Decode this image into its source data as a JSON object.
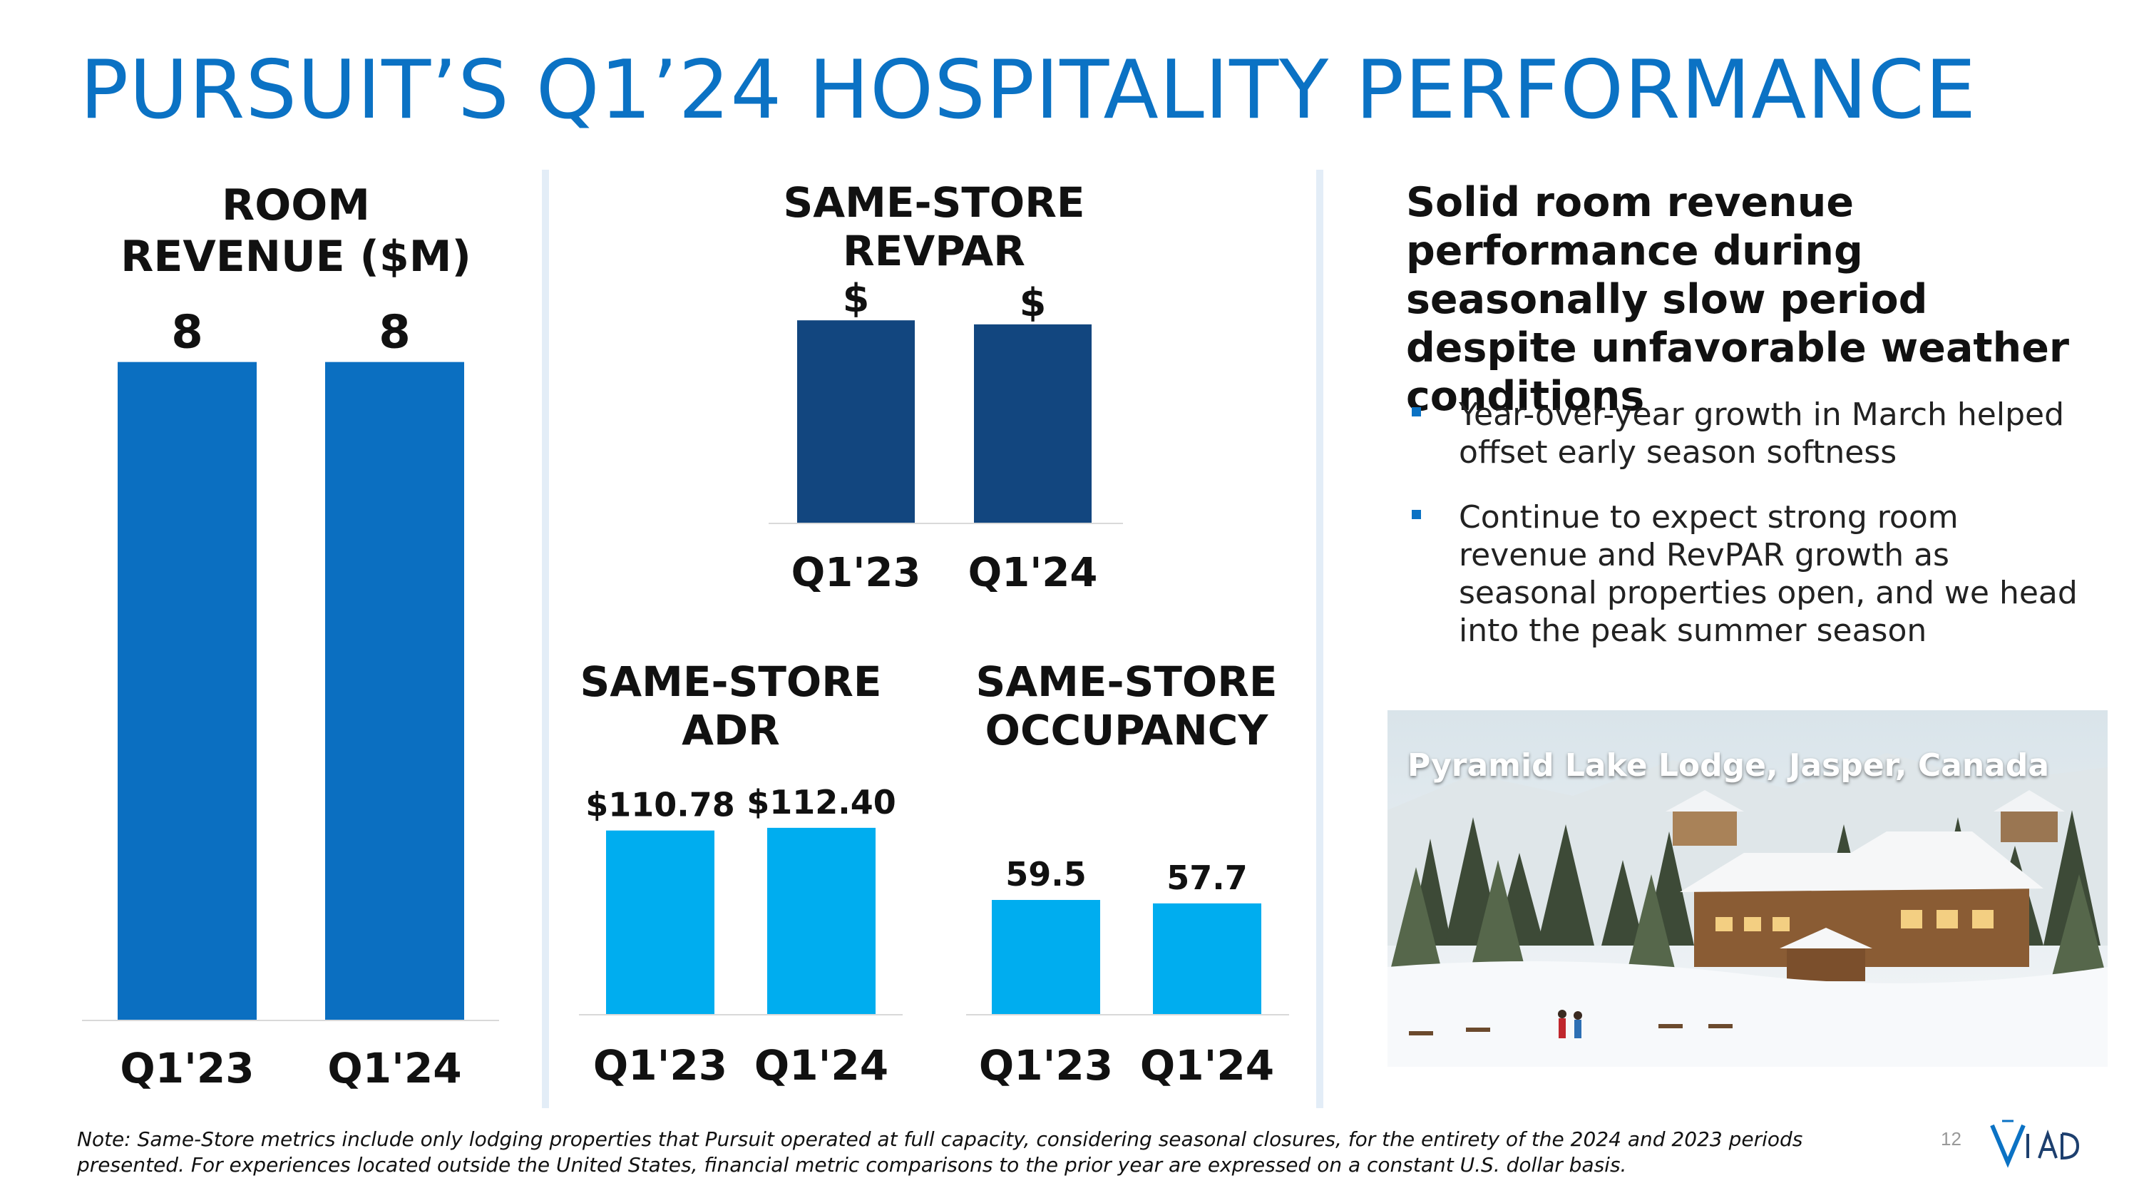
{
  "page": {
    "title": "PURSUIT’S Q1’24 HOSPITALITY PERFORMANCE",
    "note": "Note: Same-Store metrics include only lodging properties that Pursuit operated at full capacity, considering seasonal closures, for the entirety of the 2024 and 2023 periods presented. For experiences located outside the United States, financial metric comparisons to the prior year are expressed on a constant U.S. dollar basis.",
    "page_number": "12",
    "logo_text": "ViAD"
  },
  "colors": {
    "title_blue": "#0b72c4",
    "room_revenue_bar": "#0b6fc1",
    "revpar_bar": "#12467f",
    "adr_occupancy_bar": "#00adef",
    "divider": "#e3edf7"
  },
  "commentary": {
    "headline": "Solid room revenue performance during seasonally slow period despite unfavorable weather conditions",
    "bullets": [
      "Year-over-year growth in March helped offset early season softness",
      "Continue to expect strong room revenue and RevPAR growth as seasonal properties open, and we head into the peak summer season"
    ],
    "photo_caption": "Pyramid Lake Lodge, Jasper, Canada"
  },
  "chart_data": [
    {
      "id": "room_revenue",
      "type": "bar",
      "title": "ROOM REVENUE ($M)",
      "categories": [
        "Q1'23",
        "Q1'24"
      ],
      "values": [
        8,
        8
      ],
      "data_labels": [
        "8",
        "8"
      ],
      "ylim": [
        0,
        8.5
      ]
    },
    {
      "id": "revpar",
      "type": "bar",
      "title": "SAME-STORE REVPAR",
      "categories": [
        "Q1'23",
        "Q1'24"
      ],
      "values": [
        1.0,
        0.98
      ],
      "data_labels": [
        "$",
        "$"
      ],
      "ylim": [
        0,
        1.05
      ]
    },
    {
      "id": "adr",
      "type": "bar",
      "title": "SAME-STORE ADR",
      "categories": [
        "Q1'23",
        "Q1'24"
      ],
      "values": [
        110.78,
        112.4
      ],
      "data_labels": [
        "$110.78",
        "$112.40"
      ],
      "ylim": [
        0,
        130
      ]
    },
    {
      "id": "occupancy",
      "type": "bar",
      "title": "SAME-STORE OCCUPANCY",
      "categories": [
        "Q1'23",
        "Q1'24"
      ],
      "values": [
        59.5,
        57.7
      ],
      "data_labels": [
        "59.5",
        "57.7"
      ],
      "ylim": [
        0,
        90
      ]
    }
  ]
}
